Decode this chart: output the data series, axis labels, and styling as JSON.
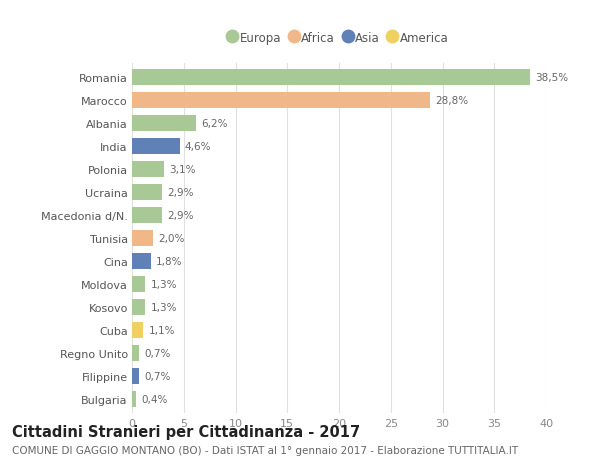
{
  "categories": [
    "Romania",
    "Marocco",
    "Albania",
    "India",
    "Polonia",
    "Ucraina",
    "Macedonia d/N.",
    "Tunisia",
    "Cina",
    "Moldova",
    "Kosovo",
    "Cuba",
    "Regno Unito",
    "Filippine",
    "Bulgaria"
  ],
  "values": [
    38.5,
    28.8,
    6.2,
    4.6,
    3.1,
    2.9,
    2.9,
    2.0,
    1.8,
    1.3,
    1.3,
    1.1,
    0.7,
    0.7,
    0.4
  ],
  "labels": [
    "38,5%",
    "28,8%",
    "6,2%",
    "4,6%",
    "3,1%",
    "2,9%",
    "2,9%",
    "2,0%",
    "1,8%",
    "1,3%",
    "1,3%",
    "1,1%",
    "0,7%",
    "0,7%",
    "0,4%"
  ],
  "continents": [
    "Europa",
    "Africa",
    "Europa",
    "Asia",
    "Europa",
    "Europa",
    "Europa",
    "Africa",
    "Asia",
    "Europa",
    "Europa",
    "America",
    "Europa",
    "Asia",
    "Europa"
  ],
  "continent_colors": {
    "Europa": "#a8c896",
    "Africa": "#f0b888",
    "Asia": "#6080b8",
    "America": "#f0d060"
  },
  "legend_order": [
    "Europa",
    "Africa",
    "Asia",
    "America"
  ],
  "title": "Cittadini Stranieri per Cittadinanza - 2017",
  "subtitle": "COMUNE DI GAGGIO MONTANO (BO) - Dati ISTAT al 1° gennaio 2017 - Elaborazione TUTTITALIA.IT",
  "xlim": [
    0,
    40
  ],
  "xticks": [
    0,
    5,
    10,
    15,
    20,
    25,
    30,
    35,
    40
  ],
  "background_color": "#ffffff",
  "grid_color": "#e0e0e0",
  "title_fontsize": 10.5,
  "subtitle_fontsize": 7.5,
  "label_fontsize": 7.5,
  "tick_fontsize": 8,
  "bar_height": 0.68
}
